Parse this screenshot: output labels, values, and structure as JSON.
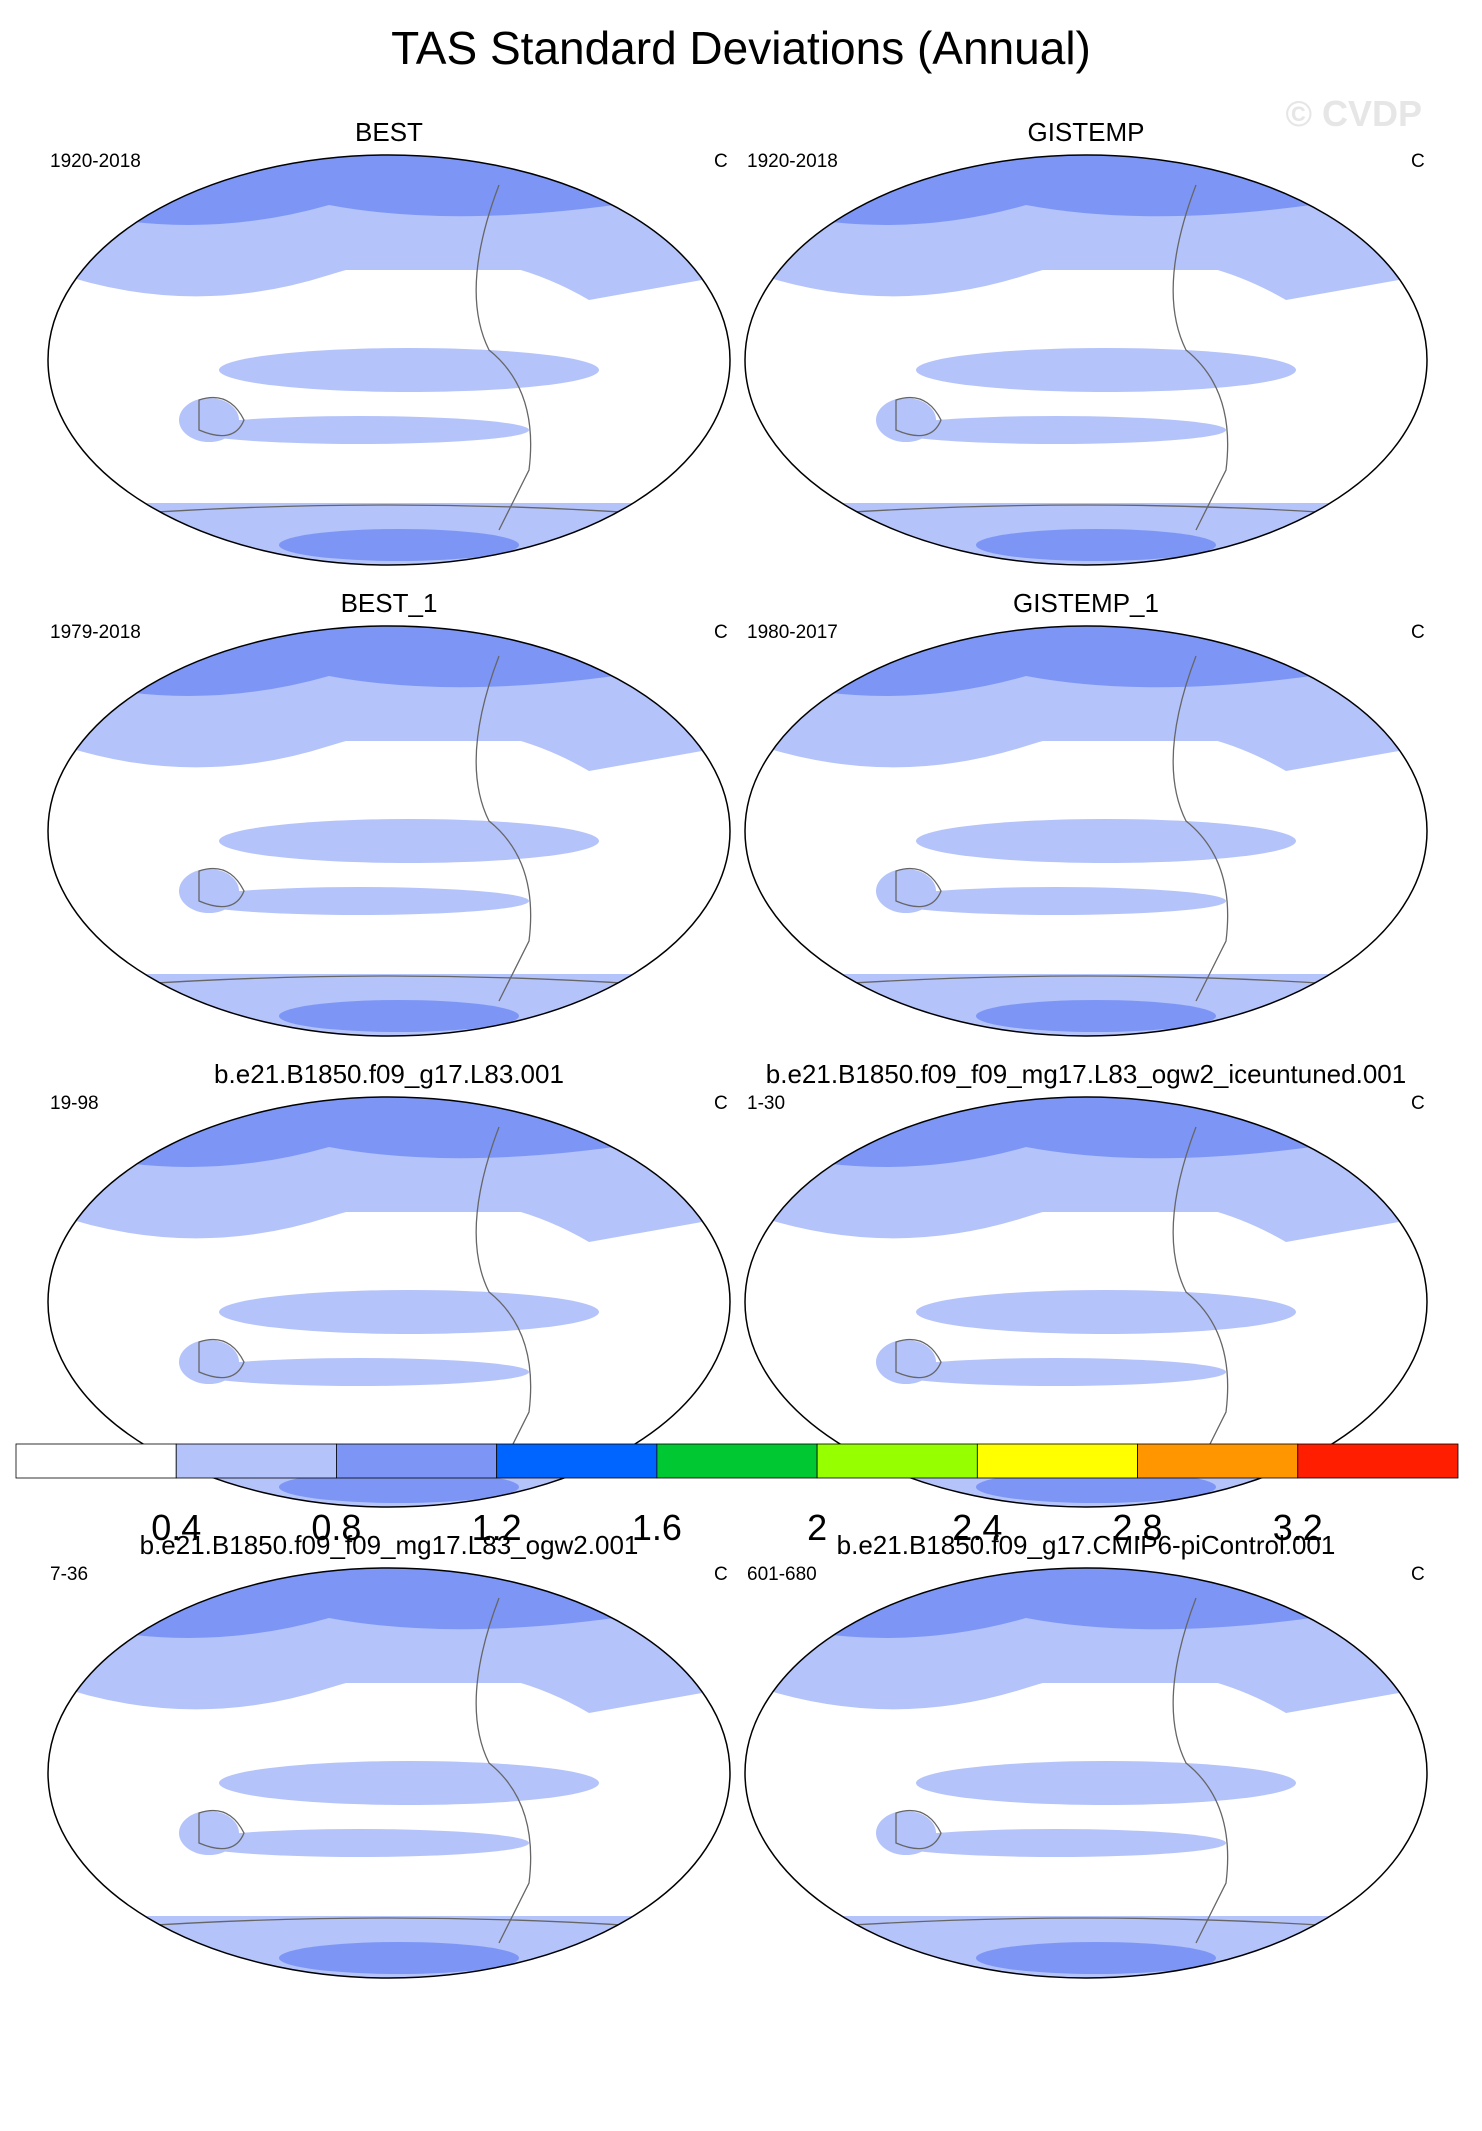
{
  "title": "TAS Standard Deviations (Annual)",
  "watermark": "© CVDP",
  "panels": [
    {
      "title": "BEST",
      "period": "1920-2018",
      "units": "C"
    },
    {
      "title": "GISTEMP",
      "period": "1920-2018",
      "units": "C"
    },
    {
      "title": "BEST_1",
      "period": "1979-2018",
      "units": "C"
    },
    {
      "title": "GISTEMP_1",
      "period": "1980-2017",
      "units": "C"
    },
    {
      "title": "b.e21.B1850.f09_g17.L83.001",
      "period": "19-98",
      "units": "C"
    },
    {
      "title": "b.e21.B1850.f09_f09_mg17.L83_ogw2_iceuntuned.001",
      "period": "1-30",
      "units": "C"
    },
    {
      "title": "b.e21.B1850.f09_f09_mg17.L83_ogw2.001",
      "period": "7-36",
      "units": "C"
    },
    {
      "title": "b.e21.B1850.f09_g17.CMIP6-piControl.001",
      "period": "601-680",
      "units": "C"
    }
  ],
  "colorbar": {
    "levels": [
      0.4,
      0.8,
      1.2,
      1.6,
      2,
      2.4,
      2.8,
      3.2
    ],
    "colors": [
      "#ffffff",
      "#b4c3fa",
      "#7d96f5",
      "#0064ff",
      "#00c832",
      "#96ff00",
      "#ffff00",
      "#ff9600",
      "#ff1e00"
    ]
  }
}
